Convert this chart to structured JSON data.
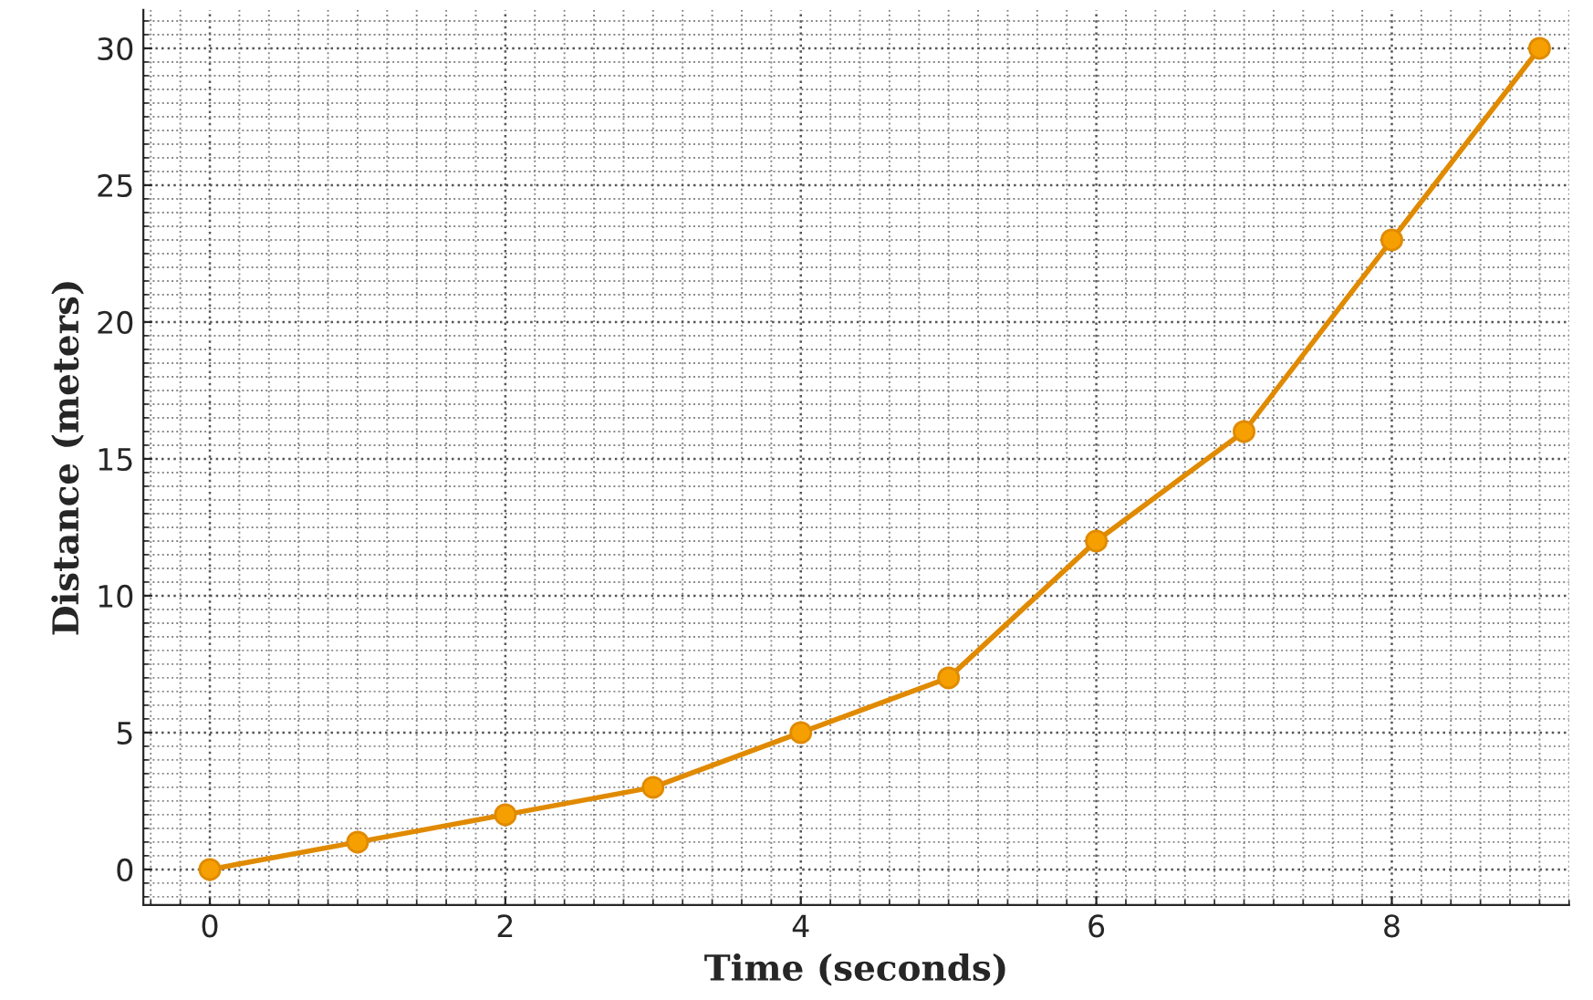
{
  "chart_data": {
    "type": "line",
    "xlabel": "Time (seconds)",
    "ylabel": "Distance (meters)",
    "x": [
      0,
      1,
      2,
      3,
      4,
      5,
      6,
      7,
      8,
      9
    ],
    "series": [
      {
        "color": "#e08a00",
        "values": [
          0,
          1,
          2,
          3,
          5,
          7,
          12,
          16,
          23,
          30
        ]
      }
    ],
    "xlim": [
      -0.45,
      9.2
    ],
    "ylim": [
      -1.3,
      31.4
    ],
    "xticks": [
      0,
      2,
      4,
      6,
      8
    ],
    "yticks": [
      0,
      5,
      10,
      15,
      20,
      25,
      30
    ],
    "grid": true,
    "marker": "circle",
    "line_style": "solid",
    "legend": false
  }
}
